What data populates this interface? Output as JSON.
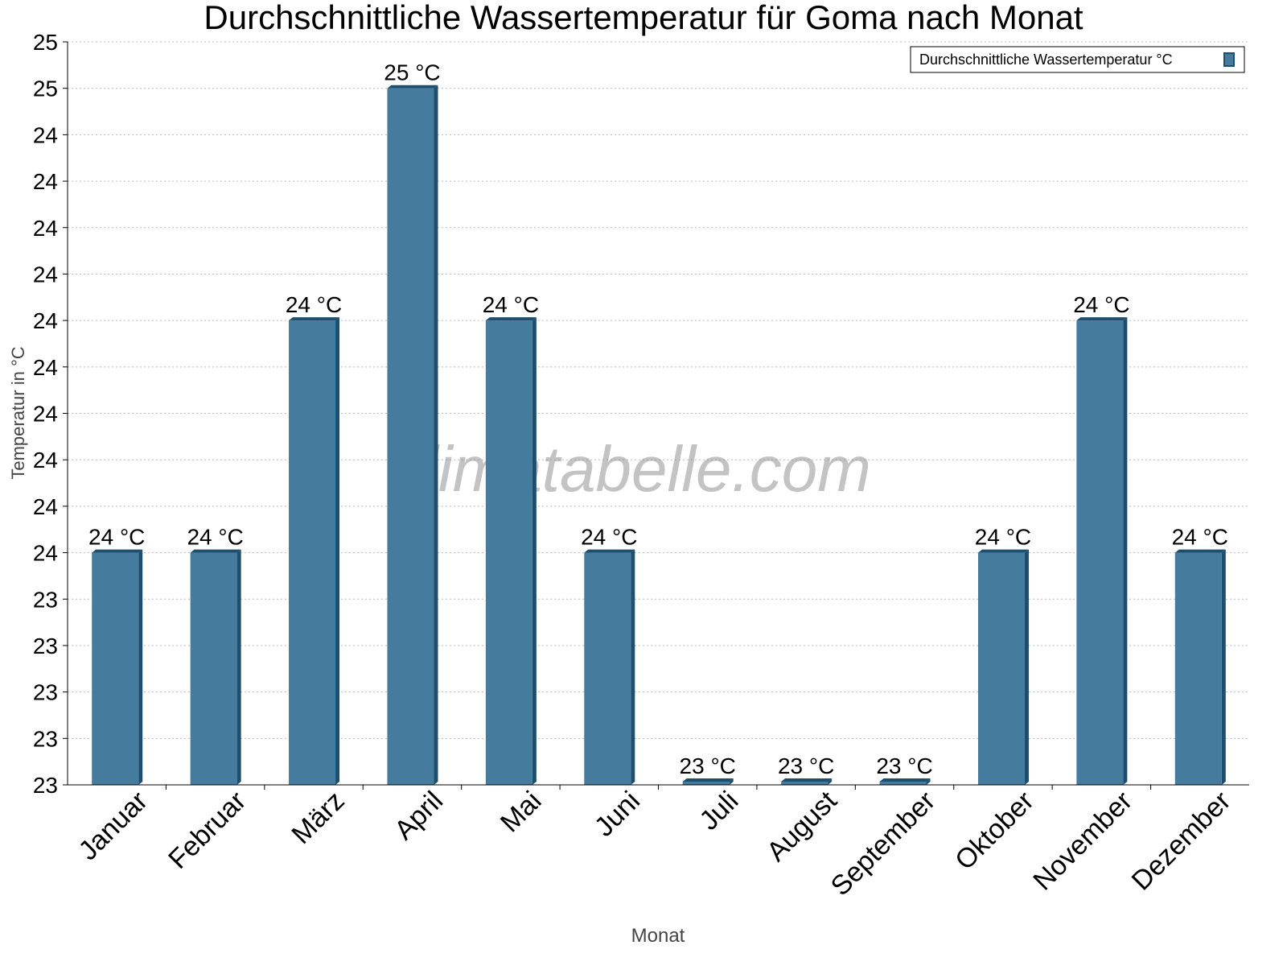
{
  "chart_data": {
    "type": "bar",
    "title": "Durchschnittliche Wassertemperatur für Goma nach Monat",
    "xlabel": "Monat",
    "ylabel": "Temperatur in °C",
    "categories": [
      "Januar",
      "Februar",
      "März",
      "April",
      "Mai",
      "Juni",
      "Juli",
      "August",
      "September",
      "Oktober",
      "November",
      "Dezember"
    ],
    "series": [
      {
        "name": "Durchschnittliche Wassertemperatur °C",
        "values": [
          23.5,
          23.5,
          24.0,
          24.5,
          24.0,
          23.5,
          23.0,
          23.0,
          23.0,
          23.5,
          24.0,
          23.5
        ],
        "labels": [
          "24 °C",
          "24 °C",
          "24 °C",
          "25 °C",
          "24 °C",
          "24 °C",
          "23 °C",
          "23 °C",
          "23 °C",
          "24 °C",
          "24 °C",
          "24 °C"
        ]
      }
    ],
    "ylim": [
      23.0,
      24.6
    ],
    "yticks": [
      23.0,
      23.1,
      23.2,
      23.3,
      23.4,
      23.5,
      23.6,
      23.7,
      23.8,
      23.9,
      24.0,
      24.1,
      24.2,
      24.3,
      24.4,
      24.5,
      24.6
    ],
    "ytick_labels": [
      "23",
      "23",
      "23",
      "23",
      "23",
      "24",
      "24",
      "24",
      "24",
      "24",
      "24",
      "24",
      "24",
      "24",
      "24",
      "25",
      "25"
    ],
    "grid": true,
    "legend_position": "top-right",
    "colors": {
      "bar": "#457b9d",
      "bar_dark": "#1d4e6e"
    },
    "watermark": "klimatabelle.com"
  }
}
